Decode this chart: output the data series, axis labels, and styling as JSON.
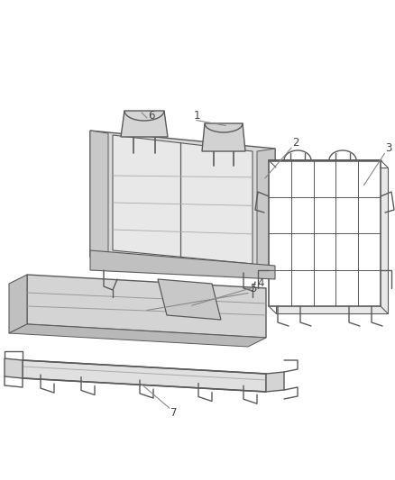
{
  "bg_color": "#ffffff",
  "lc": "#5a5a5a",
  "lc_thin": "#888888",
  "fc_seat": "#d8d8d8",
  "fc_insert": "#e8e8e8",
  "fc_cushion": "#d0d0d0",
  "fc_frame": "#e4e4e4",
  "fc_white": "#ffffff",
  "lw": 1.0,
  "label_fs": 8.5,
  "label_color": "#444444"
}
